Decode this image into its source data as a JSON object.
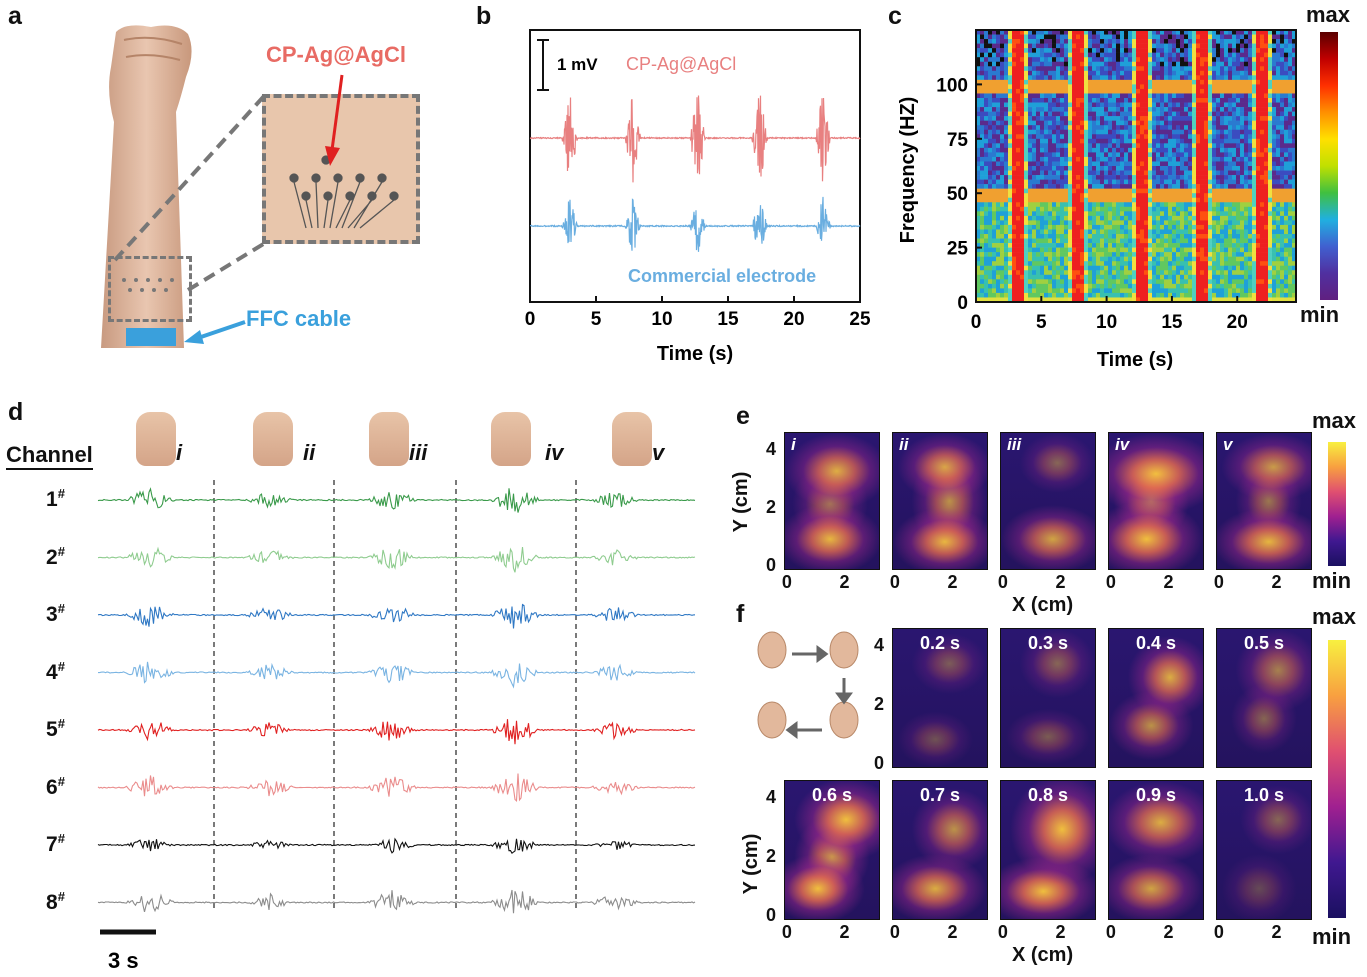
{
  "panel_labels": [
    "a",
    "b",
    "c",
    "d",
    "e",
    "f"
  ],
  "panel_a": {
    "inset_label": "CP-Ag@AgCl",
    "cable_label": "FFC cable",
    "colors": {
      "red_label": "#e86b64",
      "blue_label": "#3aa0dc"
    }
  },
  "panel_b": {
    "scale_bar": "1 mV",
    "legend_top": "CP-Ag@AgCl",
    "legend_bottom": "Commercial electrode",
    "xlabel": "Time (s)",
    "xticks": [
      "0",
      "5",
      "10",
      "15",
      "20",
      "25"
    ],
    "colors": {
      "top": "#e88080",
      "bottom": "#6aaee0"
    }
  },
  "panel_c": {
    "ylabel": "Frequency (HZ)",
    "xlabel": "Time (s)",
    "yticks": [
      "100",
      "75",
      "50",
      "25",
      "0"
    ],
    "xticks": [
      "0",
      "5",
      "10",
      "15",
      "20"
    ],
    "colorbar_max": "max",
    "colorbar_min": "min"
  },
  "panel_d": {
    "header": "Channel",
    "gestures": [
      "i",
      "ii",
      "iii",
      "iv",
      "v"
    ],
    "channels": [
      {
        "label": "1",
        "sup": "#",
        "color": "#3a9a4a"
      },
      {
        "label": "2",
        "sup": "#",
        "color": "#8fcc8f"
      },
      {
        "label": "3",
        "sup": "#",
        "color": "#2f78c4"
      },
      {
        "label": "4",
        "sup": "#",
        "color": "#7ab4e2"
      },
      {
        "label": "5",
        "sup": "#",
        "color": "#e02020"
      },
      {
        "label": "6",
        "sup": "#",
        "color": "#ea8c8c"
      },
      {
        "label": "7",
        "sup": "#",
        "color": "#111111"
      },
      {
        "label": "8",
        "sup": "#",
        "color": "#8c8c8c"
      }
    ],
    "scale_bar": "3 s"
  },
  "panel_e": {
    "maps": [
      "i",
      "ii",
      "iii",
      "iv",
      "v"
    ],
    "ylabel": "Y (cm)",
    "xlabel": "X (cm)",
    "yticks": [
      "4",
      "2",
      "0"
    ],
    "xticks": [
      "0",
      "2"
    ],
    "colorbar_max": "max",
    "colorbar_min": "min"
  },
  "panel_f": {
    "times_top": [
      "0.2 s",
      "0.3 s",
      "0.4 s",
      "0.5 s"
    ],
    "times_bottom": [
      "0.6 s",
      "0.7 s",
      "0.8 s",
      "0.9 s",
      "1.0 s"
    ],
    "ylabel": "Y (cm)",
    "xlabel": "X (cm)",
    "yticks": [
      "4",
      "2",
      "0"
    ],
    "xticks": [
      "0",
      "2"
    ],
    "colorbar_max": "max",
    "colorbar_min": "min"
  }
}
